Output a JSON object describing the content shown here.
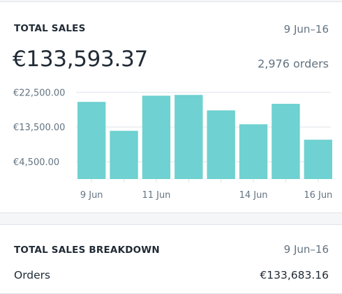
{
  "sales": {
    "title": "TOTAL SALES",
    "date_range": "9 Jun–16",
    "total": "€133,593.37",
    "orders": "2,976 orders"
  },
  "breakdown": {
    "title": "TOTAL SALES BREAKDOWN",
    "date_range": "9 Jun–16",
    "rows": [
      {
        "label": "Orders",
        "value": "€133,683.16"
      }
    ]
  },
  "chart_data": {
    "type": "bar",
    "title": "",
    "xlabel": "",
    "ylabel": "",
    "y_ticks": [
      {
        "value": 22500,
        "label": "€22,500.00"
      },
      {
        "value": 13500,
        "label": "€13,500.00"
      },
      {
        "value": 4500,
        "label": "€4,500.00"
      }
    ],
    "ylim": [
      0,
      26000
    ],
    "x_tick_labels": [
      "9 Jun",
      "11 Jun",
      "14 Jun",
      "16 Jun"
    ],
    "bars": [
      {
        "index": 0,
        "value": 20000
      },
      {
        "index": 1,
        "value": 12500
      },
      {
        "index": 2,
        "value": 21600
      },
      {
        "index": 3,
        "value": 21800
      },
      {
        "index": 4,
        "value": 17800
      },
      {
        "index": 5,
        "value": 14200
      },
      {
        "index": 6,
        "value": 19500
      },
      {
        "index": 7,
        "value": 10200
      }
    ],
    "colors": {
      "bar": "#6fd1d1",
      "grid": "#dfe3e8"
    },
    "grid": true
  }
}
